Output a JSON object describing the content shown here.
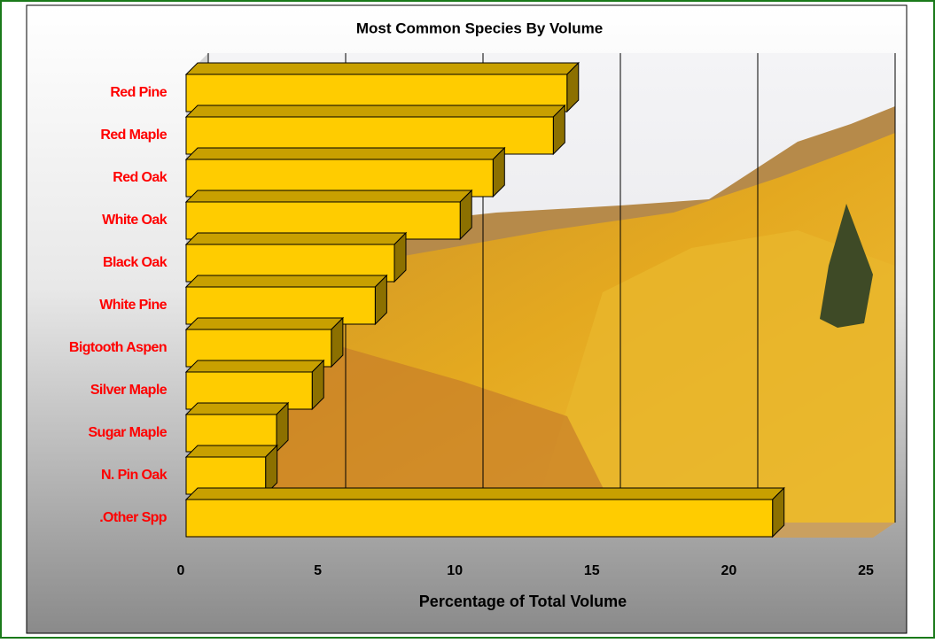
{
  "chart_data": {
    "type": "bar3d",
    "orientation": "horizontal",
    "title": "Most Common Species By Volume",
    "x_label": "Percentage of Total Volume",
    "categories": [
      "Red Pine",
      "Red Maple",
      "Red Oak",
      "White Oak",
      "Black Oak",
      "White Pine",
      "Bigtooth Aspen",
      "Silver Maple",
      "Sugar Maple",
      "N. Pin Oak",
      ".Other Spp"
    ],
    "values": [
      13.9,
      13.4,
      11.2,
      10.0,
      7.6,
      6.9,
      5.3,
      4.6,
      3.3,
      2.9,
      21.4
    ],
    "color": "#ffcc00",
    "xlim": [
      0,
      25
    ],
    "xticks": [
      0,
      5,
      10,
      15,
      20,
      25
    ],
    "grid": true
  }
}
